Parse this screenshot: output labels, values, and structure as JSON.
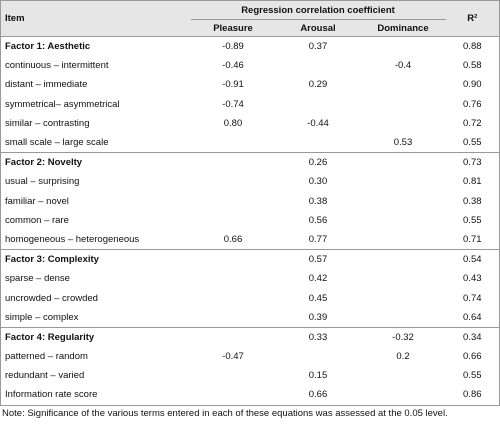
{
  "table": {
    "header": {
      "item": "Item",
      "group": "Regression correlation coefficient",
      "columns": [
        "Pleasure",
        "Arousal",
        "Dominance"
      ],
      "r2": "R²"
    },
    "groups": [
      {
        "header": [
          "Factor 1: Aesthetic",
          "-0.89",
          "0.37",
          null,
          "0.88"
        ],
        "rows": [
          [
            "continuous – intermittent",
            "-0.46",
            null,
            "-0.4",
            "0.58"
          ],
          [
            "distant – immediate",
            "-0.91",
            "0.29",
            null,
            "0.90"
          ],
          [
            "symmetrical– asymmetrical",
            "-0.74",
            null,
            null,
            "0.76"
          ],
          [
            "similar – contrasting",
            "0.80",
            "-0.44",
            null,
            "0.72"
          ],
          [
            "small scale – large scale",
            null,
            null,
            "0.53",
            "0.55"
          ]
        ]
      },
      {
        "header": [
          "Factor 2: Novelty",
          null,
          "0.26",
          null,
          "0.73"
        ],
        "rows": [
          [
            "usual – surprising",
            null,
            "0.30",
            null,
            "0.81"
          ],
          [
            "familiar – novel",
            null,
            "0.38",
            null,
            "0.38"
          ],
          [
            "common – rare",
            null,
            "0.56",
            null,
            "0.55"
          ],
          [
            "homogeneous – heterogeneous",
            "0.66",
            "0.77",
            null,
            "0.71"
          ]
        ]
      },
      {
        "header": [
          "Factor 3: Complexity",
          null,
          "0.57",
          null,
          "0.54"
        ],
        "rows": [
          [
            "sparse – dense",
            null,
            "0.42",
            null,
            "0.43"
          ],
          [
            "uncrowded – crowded",
            null,
            "0.45",
            null,
            "0.74"
          ],
          [
            "simple – complex",
            null,
            "0.39",
            null,
            "0.64"
          ]
        ]
      },
      {
        "header": [
          "Factor 4: Regularity",
          null,
          "0.33",
          "-0.32",
          "0.34"
        ],
        "rows": [
          [
            "patterned – random",
            "-0.47",
            null,
            "0.2",
            "0.66"
          ],
          [
            "redundant – varied",
            null,
            "0.15",
            null,
            "0.55"
          ],
          [
            "Information rate score",
            null,
            "0.66",
            null,
            "0.86"
          ]
        ]
      }
    ],
    "note": "Note: Significance of the various terms entered in each of these equations was assessed at the 0.05 level."
  }
}
